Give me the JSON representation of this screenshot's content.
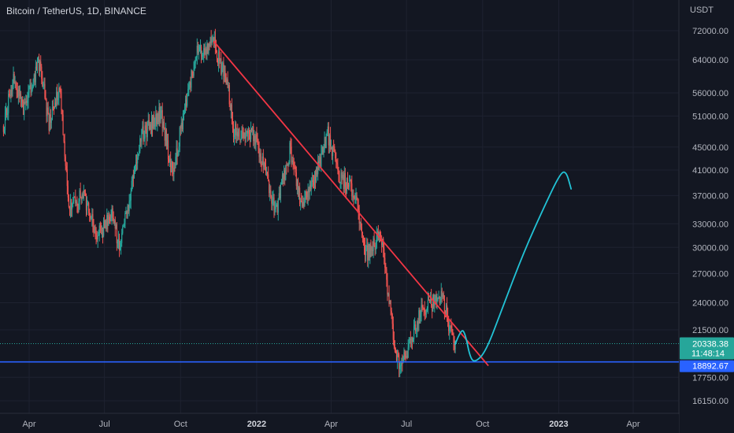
{
  "header": {
    "symbol": "Bitcoin / TetherUS",
    "interval": "1D",
    "exchange": "BINANCE",
    "sep1": ", ",
    "sep2": ", "
  },
  "price_axis": {
    "currency": "USDT"
  },
  "tags": {
    "last_price": "20338.38",
    "countdown": "11:48:14",
    "support_level": "18892.67"
  },
  "colors": {
    "background": "#131722",
    "grid": "#1e2230",
    "up": "#26a69a",
    "down": "#ef5350",
    "trendline": "#f23645",
    "projection": "#22c3d6",
    "support": "#2962ff",
    "last_price_tag": "#26a69a",
    "support_tag": "#2962ff",
    "axis_text": "#b2b5be"
  },
  "chart_data": {
    "type": "candlestick",
    "title": "Bitcoin / TetherUS, 1D, BINANCE",
    "y_scale": "log",
    "y_unit": "USDT",
    "y_ticks": [
      72000,
      64000,
      56000,
      51000,
      45000,
      41000,
      37000,
      33000,
      30000,
      27000,
      24000,
      21500,
      17750,
      16150
    ],
    "y_tick_labels": [
      "72000.00",
      "64000.00",
      "56000.00",
      "51000.00",
      "45000.00",
      "41000.00",
      "37000.00",
      "33000.00",
      "30000.00",
      "27000.00",
      "24000.00",
      "21500.00",
      "17750.00",
      "16150.00"
    ],
    "x_ticks": [
      "2021-04-01",
      "2021-07-01",
      "2021-10-01",
      "2022-01-01",
      "2022-04-01",
      "2022-07-01",
      "2022-10-01",
      "2023-01-01",
      "2023-04-01"
    ],
    "x_tick_labels": [
      "Apr",
      "Jul",
      "Oct",
      "2022",
      "Apr",
      "Jul",
      "Oct",
      "2023",
      "Apr"
    ],
    "price_path": [
      [
        "2021-03-01",
        49000
      ],
      [
        "2021-03-13",
        60000
      ],
      [
        "2021-03-25",
        52000
      ],
      [
        "2021-04-14",
        63500
      ],
      [
        "2021-04-25",
        49000
      ],
      [
        "2021-05-08",
        58000
      ],
      [
        "2021-05-19",
        36000
      ],
      [
        "2021-06-05",
        37000
      ],
      [
        "2021-06-22",
        31500
      ],
      [
        "2021-07-10",
        34000
      ],
      [
        "2021-07-20",
        30000
      ],
      [
        "2021-08-14",
        47000
      ],
      [
        "2021-09-07",
        52000
      ],
      [
        "2021-09-21",
        40500
      ],
      [
        "2021-10-01",
        48000
      ],
      [
        "2021-10-20",
        66000
      ],
      [
        "2021-11-10",
        68500
      ],
      [
        "2021-11-28",
        57000
      ],
      [
        "2021-12-04",
        48000
      ],
      [
        "2021-12-28",
        47500
      ],
      [
        "2022-01-10",
        41000
      ],
      [
        "2022-01-24",
        34500
      ],
      [
        "2022-02-10",
        44500
      ],
      [
        "2022-02-24",
        35500
      ],
      [
        "2022-03-10",
        39000
      ],
      [
        "2022-03-28",
        47500
      ],
      [
        "2022-04-11",
        40000
      ],
      [
        "2022-04-30",
        37500
      ],
      [
        "2022-05-12",
        29000
      ],
      [
        "2022-05-31",
        31800
      ],
      [
        "2022-06-13",
        22500
      ],
      [
        "2022-06-18",
        18900
      ],
      [
        "2022-06-30",
        19200
      ],
      [
        "2022-07-20",
        23500
      ],
      [
        "2022-07-30",
        23800
      ],
      [
        "2022-08-14",
        24500
      ],
      [
        "2022-08-26",
        20400
      ],
      [
        "2022-08-29",
        20338.38
      ]
    ],
    "drawings": {
      "trendline": {
        "from": [
          "2021-11-10",
          69000
        ],
        "to": [
          "2022-10-08",
          18600
        ]
      },
      "support_line": {
        "price": 18892.67
      },
      "projection": [
        [
          "2022-08-29",
          20300
        ],
        [
          "2022-09-05",
          21600
        ],
        [
          "2022-09-10",
          21200
        ],
        [
          "2022-09-16",
          19200
        ],
        [
          "2022-09-22",
          18850
        ],
        [
          "2022-10-05",
          19700
        ],
        [
          "2022-10-25",
          23500
        ],
        [
          "2022-11-20",
          29500
        ],
        [
          "2022-12-15",
          35500
        ],
        [
          "2023-01-03",
          40500
        ],
        [
          "2023-01-10",
          40800
        ],
        [
          "2023-01-16",
          38000
        ]
      ]
    },
    "last_price": 20338.38,
    "support_price": 18892.67
  }
}
